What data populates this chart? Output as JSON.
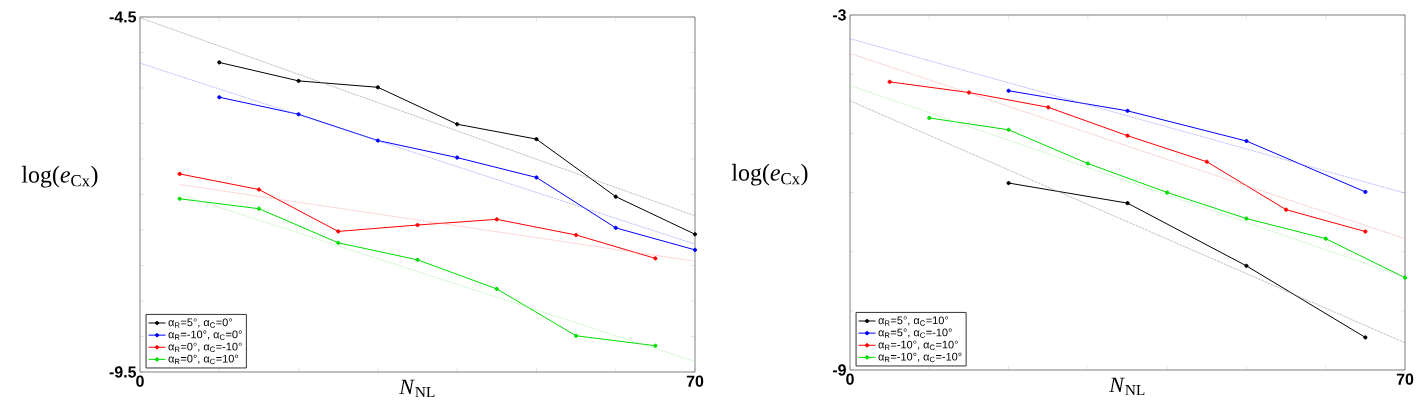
{
  "chart_data": [
    {
      "type": "line",
      "xlabel": "*N*$_{NL}$",
      "ylabel": "log(*e*$_{Cx}$)",
      "xlim": [
        0,
        70
      ],
      "ylim": [
        -9.5,
        -4.5
      ],
      "xticks": [
        0,
        {
          "value": 10,
          "label": null
        },
        {
          "value": 20,
          "label": null
        },
        {
          "value": 30,
          "label": null
        },
        {
          "value": 40,
          "label": null
        },
        {
          "value": 50,
          "label": null
        },
        {
          "value": 60,
          "label": null
        },
        70
      ],
      "yticks": [
        -9.5,
        {
          "value": -9,
          "label": null
        },
        {
          "value": -8.5,
          "label": null
        },
        {
          "value": -8,
          "label": null
        },
        {
          "value": -7.5,
          "label": null
        },
        {
          "value": -7,
          "label": null
        },
        {
          "value": -6.5,
          "label": null
        },
        {
          "value": -6,
          "label": null
        },
        {
          "value": -5.5,
          "label": null
        },
        {
          "value": -5,
          "label": null
        },
        -4.5
      ],
      "legend": "bottom left",
      "marker": "circle",
      "line_style": "solid",
      "series": [
        {
          "name": "α$_{R}$=5°, α$_{C}$=0°",
          "color": "#000000",
          "x": [
            10,
            20,
            30,
            40,
            50,
            60,
            70
          ],
          "values": [
            -5.14,
            -5.4,
            -5.49,
            -6.01,
            -6.22,
            -7.03,
            -7.56
          ]
        },
        {
          "name": "α$_{R}$=-10°, α$_{C}$=0°",
          "color": "#0000ff",
          "x": [
            10,
            20,
            30,
            40,
            50,
            60,
            70
          ],
          "values": [
            -5.63,
            -5.87,
            -6.24,
            -6.48,
            -6.76,
            -7.47,
            -7.78
          ]
        },
        {
          "name": "α$_{R}$=0°, α$_{C}$=-10°",
          "color": "#ff0000",
          "x": [
            5,
            15,
            25,
            35,
            45,
            55,
            65
          ],
          "values": [
            -6.71,
            -6.93,
            -7.52,
            -7.43,
            -7.35,
            -7.57,
            -7.9
          ]
        },
        {
          "name": "α$_{R}$=0°, α$_{C}$=10°",
          "color": "#00dd00",
          "x": [
            5,
            15,
            25,
            35,
            45,
            55,
            65
          ],
          "values": [
            -7.06,
            -7.2,
            -7.68,
            -7.92,
            -8.33,
            -8.99,
            -9.13
          ]
        },
        {
          "type": "line",
          "color": "#888888",
          "x": [
            0,
            70
          ],
          "values": [
            -4.51,
            -7.3
          ],
          "line_style": "dotted",
          "marker": "none"
        },
        {
          "type": "line",
          "color": "#8888ff",
          "x": [
            0,
            70
          ],
          "values": [
            -5.15,
            -7.7
          ],
          "line_style": "dotted",
          "marker": "none"
        },
        {
          "type": "line",
          "color": "#ff9999",
          "x": [
            5,
            70
          ],
          "values": [
            -6.86,
            -7.94
          ],
          "line_style": "dotted",
          "marker": "none"
        },
        {
          "type": "line",
          "color": "#99ee99",
          "x": [
            5,
            70
          ],
          "values": [
            -7.0,
            -9.35
          ],
          "line_style": "dotted",
          "marker": "none"
        }
      ]
    },
    {
      "type": "line",
      "xlabel": "*N*$_{NL}$",
      "ylabel": "log(*e*$_{Cx}$)",
      "xlim": [
        0,
        70
      ],
      "ylim": [
        -9,
        -3
      ],
      "xticks": [
        0,
        {
          "value": 10,
          "label": null
        },
        {
          "value": 20,
          "label": null
        },
        {
          "value": 30,
          "label": null
        },
        {
          "value": 40,
          "label": null
        },
        {
          "value": 50,
          "label": null
        },
        {
          "value": 60,
          "label": null
        },
        70
      ],
      "yticks": [
        -9,
        {
          "value": -8,
          "label": null
        },
        {
          "value": -7,
          "label": null
        },
        {
          "value": -6,
          "label": null
        },
        {
          "value": -5,
          "label": null
        },
        {
          "value": -4,
          "label": null
        },
        -3
      ],
      "legend": "bottom left",
      "marker": "circle",
      "line_style": "solid",
      "series": [
        {
          "name": "α$_{R}$=5°, α$_{C}$=10°",
          "color": "#000000",
          "x": [
            20,
            35,
            50,
            65
          ],
          "values": [
            -5.84,
            -6.18,
            -7.24,
            -8.45
          ]
        },
        {
          "name": "α$_{R}$=5°, α$_{C}$=-10°",
          "color": "#0000ff",
          "x": [
            20,
            35,
            50,
            65
          ],
          "values": [
            -4.28,
            -4.62,
            -5.13,
            -5.99
          ]
        },
        {
          "name": "α$_{R}$=-10°, α$_{C}$=10°",
          "color": "#ff0000",
          "x": [
            5,
            15,
            25,
            35,
            45,
            55,
            65
          ],
          "values": [
            -4.13,
            -4.31,
            -4.56,
            -5.04,
            -5.48,
            -6.29,
            -6.66
          ]
        },
        {
          "name": "α$_{R}$=-10°, α$_{C}$=-10°",
          "color": "#00dd00",
          "x": [
            10,
            20,
            30,
            40,
            50,
            60,
            70
          ],
          "values": [
            -4.74,
            -4.94,
            -5.51,
            -6.0,
            -6.44,
            -6.78,
            -7.44
          ]
        },
        {
          "type": "line",
          "color": "#888888",
          "x": [
            0,
            70
          ],
          "values": [
            -4.45,
            -8.54
          ],
          "line_style": "dotted",
          "marker": "none"
        },
        {
          "type": "line",
          "color": "#8888ff",
          "x": [
            0,
            70
          ],
          "values": [
            -3.4,
            -6.01
          ],
          "line_style": "dotted",
          "marker": "none"
        },
        {
          "type": "line",
          "color": "#ff9999",
          "x": [
            0,
            70
          ],
          "values": [
            -3.65,
            -6.78
          ],
          "line_style": "dotted",
          "marker": "none"
        },
        {
          "type": "line",
          "color": "#99ee99",
          "x": [
            0,
            70
          ],
          "values": [
            -4.19,
            -7.43
          ],
          "line_style": "dotted",
          "marker": "none"
        }
      ]
    }
  ]
}
